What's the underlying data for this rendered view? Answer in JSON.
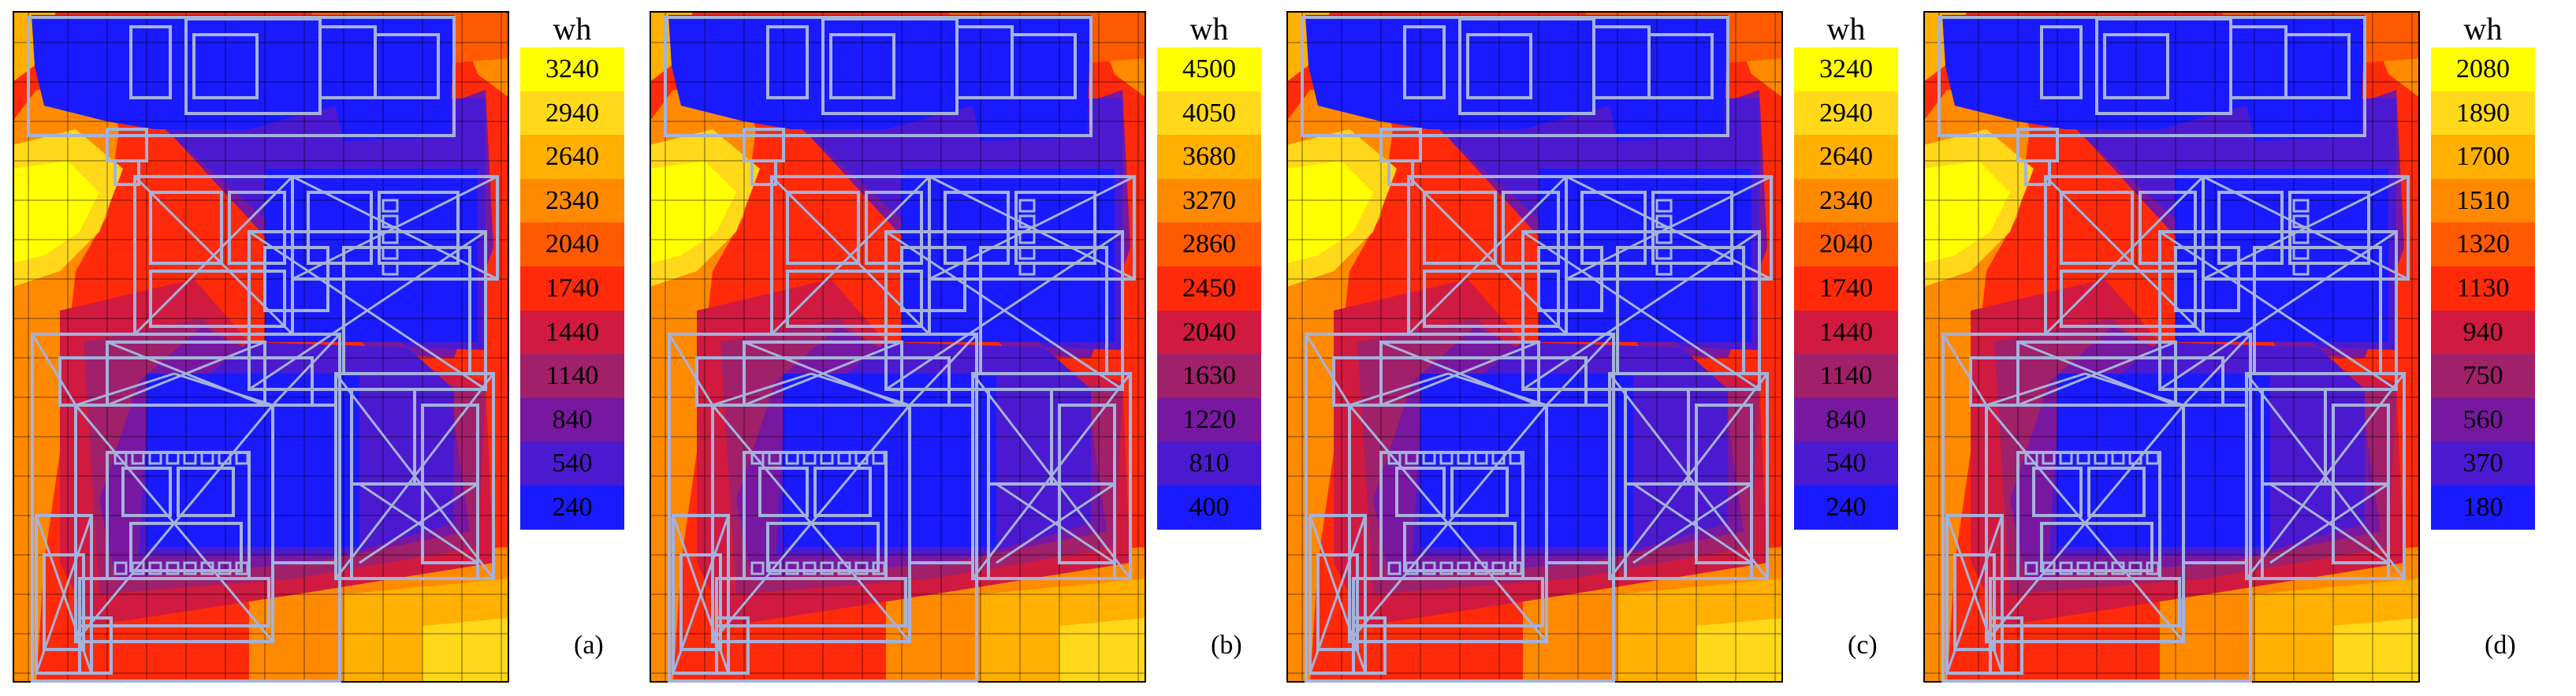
{
  "panels": [
    {
      "label": "(a)",
      "unit": "wh",
      "legend": [
        "3240",
        "2940",
        "2640",
        "2340",
        "2040",
        "1740",
        "1440",
        "1140",
        "840",
        "540",
        "240"
      ]
    },
    {
      "label": "(b)",
      "unit": "wh",
      "legend": [
        "4500",
        "4050",
        "3680",
        "3270",
        "2860",
        "2450",
        "2040",
        "1630",
        "1220",
        "810",
        "400"
      ]
    },
    {
      "label": "(c)",
      "unit": "wh",
      "legend": [
        "3240",
        "2940",
        "2640",
        "2340",
        "2040",
        "1740",
        "1440",
        "1140",
        "840",
        "540",
        "240"
      ]
    },
    {
      "label": "(d)",
      "unit": "wh",
      "legend": [
        "2080",
        "1890",
        "1700",
        "1510",
        "1320",
        "1130",
        "940",
        "750",
        "560",
        "370",
        "180"
      ]
    }
  ],
  "legend_colors": [
    "#ffff00",
    "#ffd81a",
    "#ffb000",
    "#ff8a00",
    "#ff5a00",
    "#ff2a0a",
    "#d01a40",
    "#a0206a",
    "#7818a0",
    "#4b1ad0",
    "#1a1aff"
  ],
  "floorplan_color": "#a5b2dc"
}
